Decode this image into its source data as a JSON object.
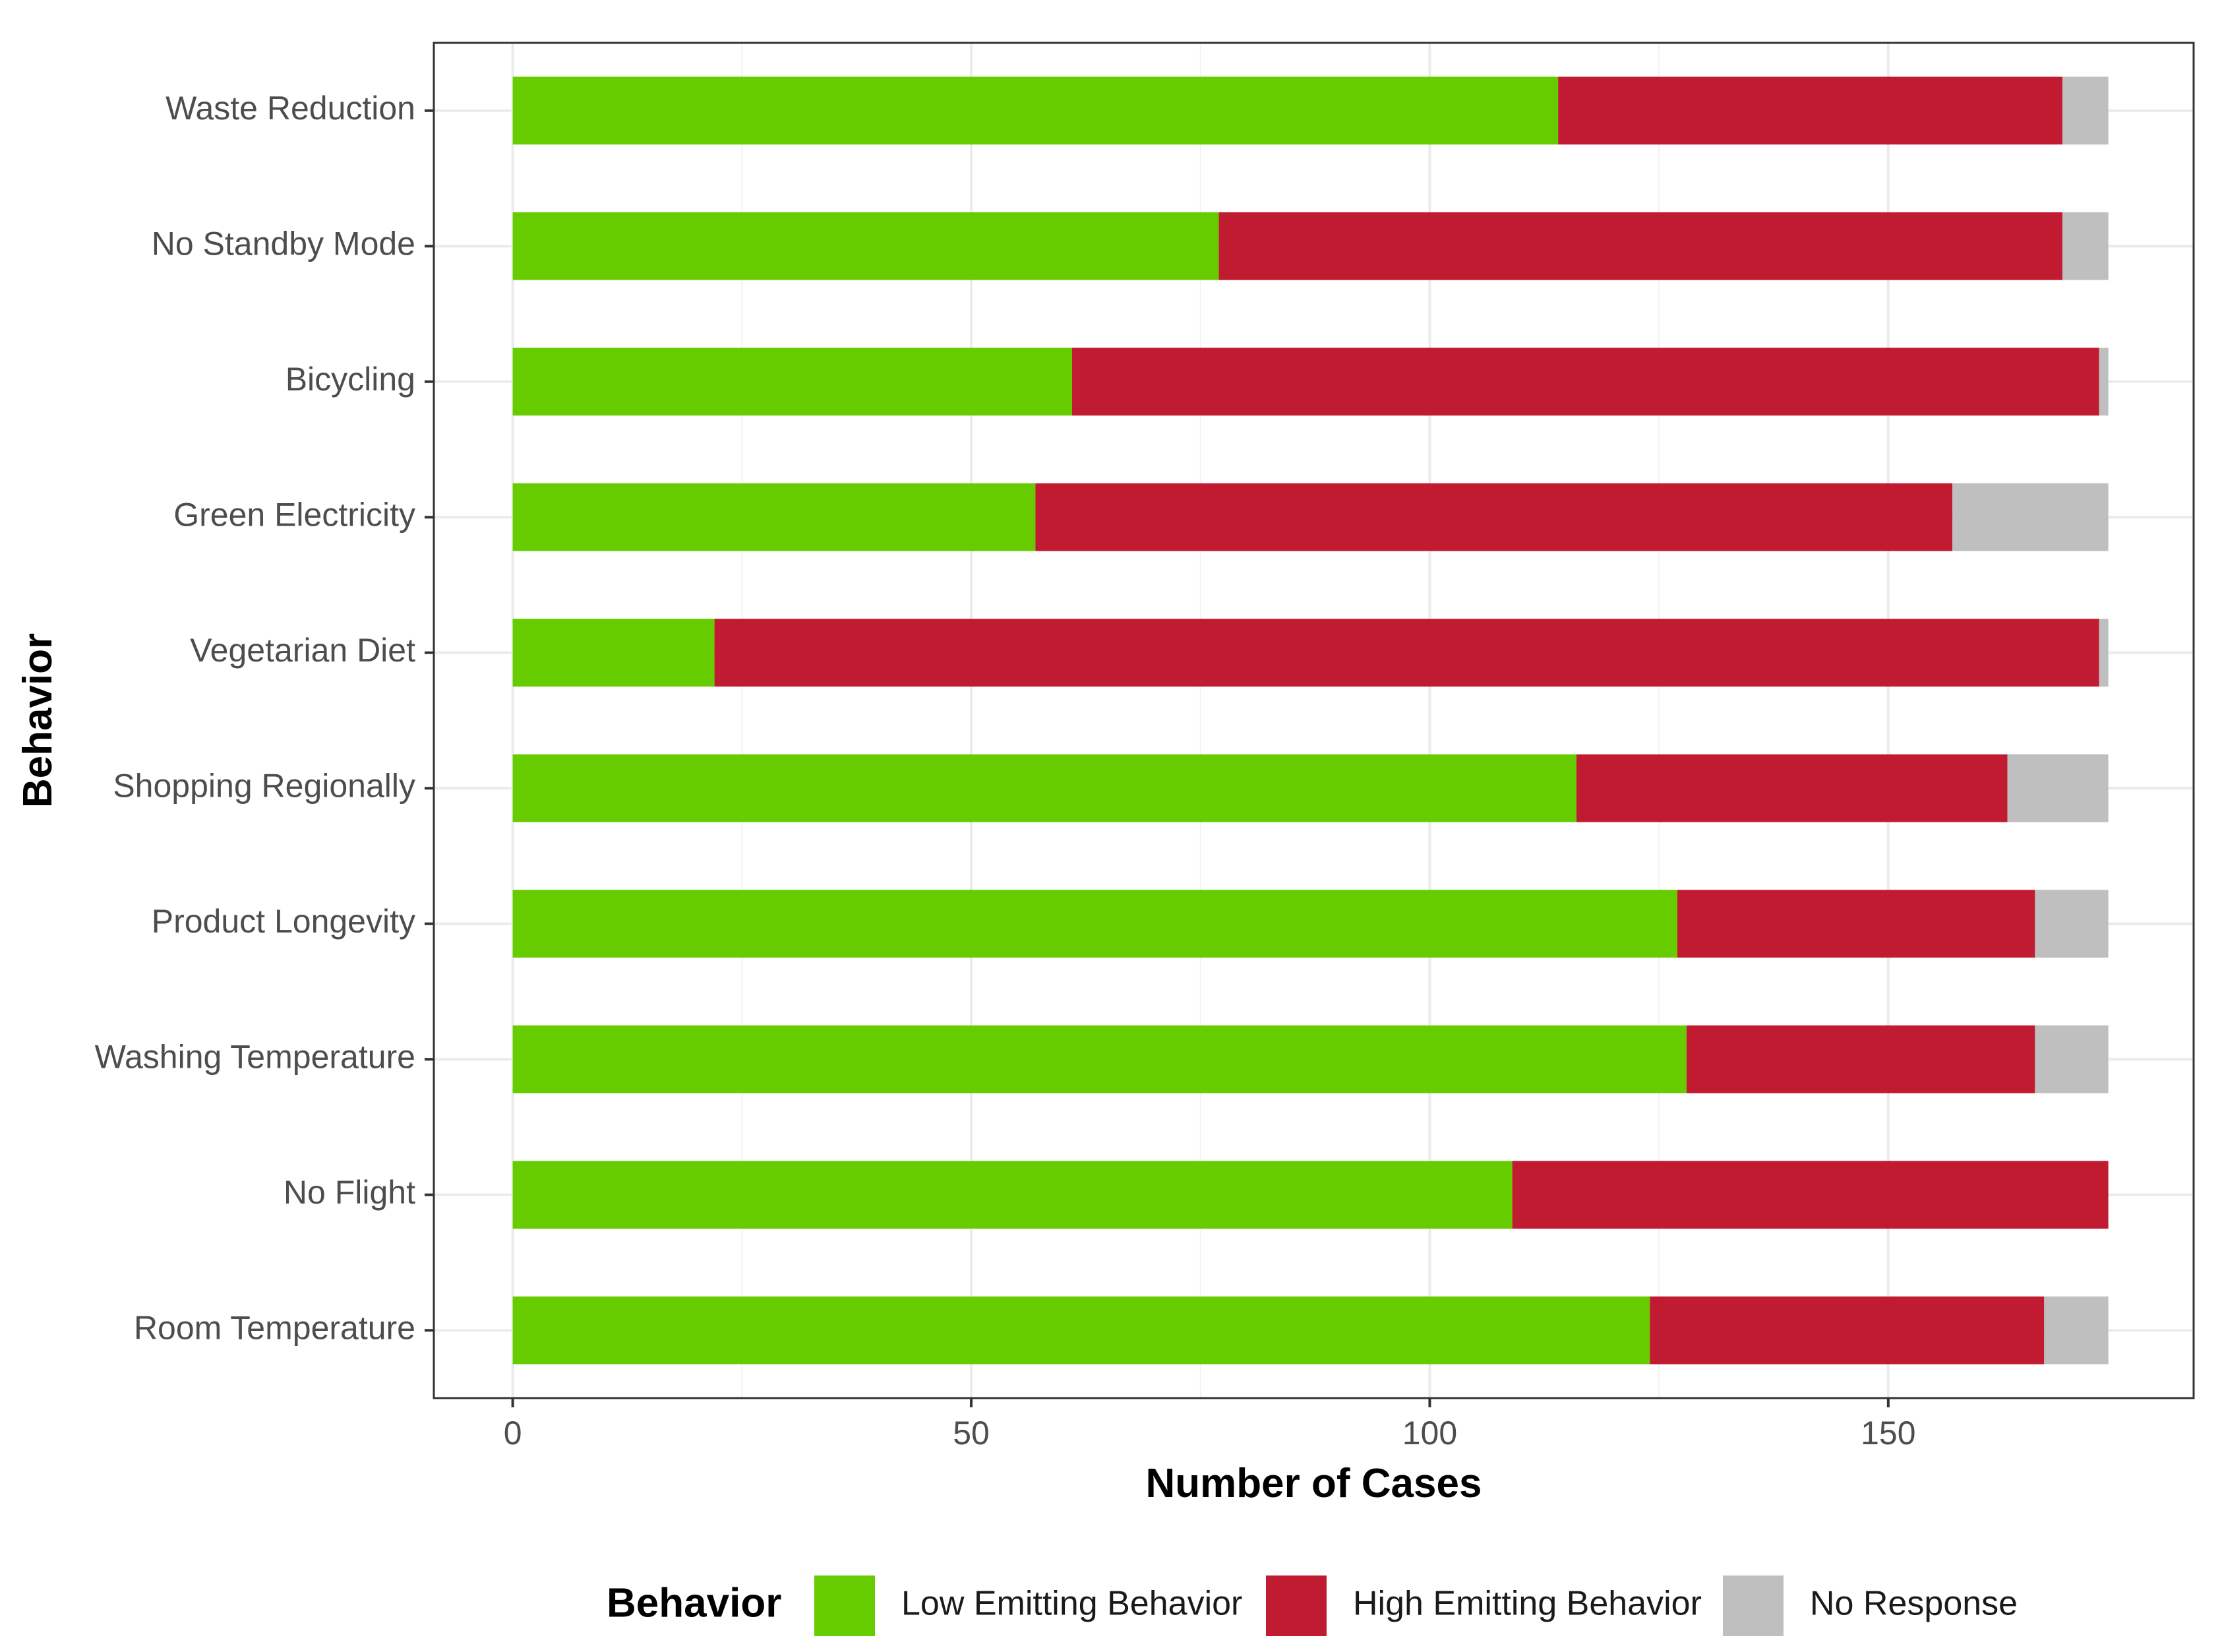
{
  "chart_data": {
    "type": "bar",
    "orientation": "horizontal",
    "stacked": true,
    "title": "",
    "xlabel": "Number of Cases",
    "ylabel": "Behavior",
    "xlim": [
      -8.6,
      183.3
    ],
    "xticks": [
      0,
      50,
      100,
      150
    ],
    "grid": true,
    "legend_position": "bottom",
    "legend_title": "Behavior",
    "categories": [
      "Waste Reduction",
      "No Standby Mode",
      "Bicycling",
      "Green Electricity",
      "Vegetarian Diet",
      "Shopping Regionally",
      "Product Longevity",
      "Washing Temperature",
      "No Flight",
      "Room Temperature"
    ],
    "series": [
      {
        "name": "Low Emitting Behavior",
        "color": "#66cc00",
        "values": [
          114,
          77,
          61,
          57,
          22,
          116,
          127,
          128,
          109,
          124
        ]
      },
      {
        "name": "High Emitting Behavior",
        "color": "#c01b30",
        "values": [
          55,
          92,
          112,
          100,
          151,
          47,
          39,
          38,
          65,
          43
        ]
      },
      {
        "name": "No Response",
        "color": "#bfbfbf",
        "values": [
          5,
          5,
          1,
          17,
          1,
          11,
          8,
          8,
          0,
          7
        ]
      }
    ]
  }
}
